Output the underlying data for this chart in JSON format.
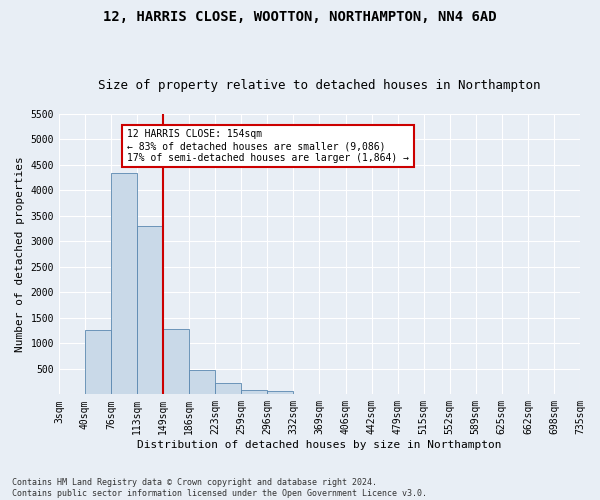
{
  "title_line1": "12, HARRIS CLOSE, WOOTTON, NORTHAMPTON, NN4 6AD",
  "title_line2": "Size of property relative to detached houses in Northampton",
  "xlabel": "Distribution of detached houses by size in Northampton",
  "ylabel": "Number of detached properties",
  "footnote": "Contains HM Land Registry data © Crown copyright and database right 2024.\nContains public sector information licensed under the Open Government Licence v3.0.",
  "bin_labels": [
    "3sqm",
    "40sqm",
    "76sqm",
    "113sqm",
    "149sqm",
    "186sqm",
    "223sqm",
    "259sqm",
    "296sqm",
    "332sqm",
    "369sqm",
    "406sqm",
    "442sqm",
    "479sqm",
    "515sqm",
    "552sqm",
    "589sqm",
    "625sqm",
    "662sqm",
    "698sqm",
    "735sqm"
  ],
  "bar_values": [
    0,
    1270,
    4340,
    3300,
    1290,
    480,
    215,
    90,
    60,
    0,
    0,
    0,
    0,
    0,
    0,
    0,
    0,
    0,
    0,
    0
  ],
  "bar_color": "#c9d9e8",
  "bar_edge_color": "#5a88b0",
  "vline_x": 4.0,
  "vline_color": "#cc0000",
  "annotation_text": "12 HARRIS CLOSE: 154sqm\n← 83% of detached houses are smaller (9,086)\n17% of semi-detached houses are larger (1,864) →",
  "annotation_box_color": "#ffffff",
  "annotation_box_edge": "#cc0000",
  "background_color": "#e8eef5",
  "ylim": [
    0,
    5500
  ],
  "yticks": [
    0,
    500,
    1000,
    1500,
    2000,
    2500,
    3000,
    3500,
    4000,
    4500,
    5000,
    5500
  ],
  "grid_color": "#ffffff",
  "title_fontsize": 10,
  "subtitle_fontsize": 9,
  "axis_label_fontsize": 8,
  "tick_fontsize": 7,
  "annot_fontsize": 7
}
